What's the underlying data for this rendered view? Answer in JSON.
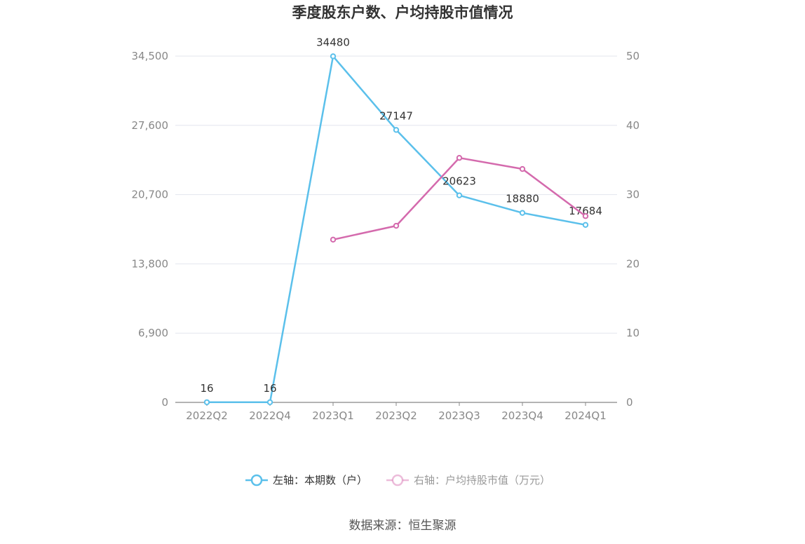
{
  "chart_data": {
    "type": "line",
    "title": "季度股东户数、户均持股市值情况",
    "categories": [
      "2022Q2",
      "2022Q4",
      "2023Q1",
      "2023Q2",
      "2023Q3",
      "2023Q4",
      "2024Q1"
    ],
    "left_axis": {
      "ticks": [
        "0",
        "6,900",
        "13,800",
        "20,700",
        "27,600",
        "34,500"
      ],
      "min": 0,
      "max": 34500
    },
    "right_axis": {
      "ticks": [
        "0",
        "10",
        "20",
        "30",
        "40",
        "50"
      ],
      "min": 0,
      "max": 50
    },
    "series": [
      {
        "name": "左轴：本期数（户）",
        "axis": "left",
        "color": "#5bc0eb",
        "values": [
          16,
          16,
          34480,
          27147,
          20623,
          18880,
          17684
        ],
        "labels": [
          "16",
          "16",
          "34480",
          "27147",
          "20623",
          "18880",
          "17684"
        ]
      },
      {
        "name": "右轴：户均持股市值（万元）",
        "axis": "right",
        "color": "#d46aad",
        "values": [
          null,
          null,
          23.5,
          25.5,
          35.3,
          33.7,
          26.9
        ]
      }
    ],
    "grid": true,
    "legend_position": "bottom"
  },
  "source": "数据来源：恒生聚源"
}
